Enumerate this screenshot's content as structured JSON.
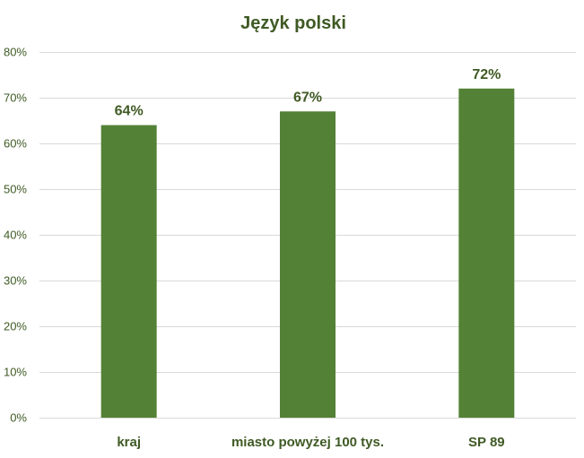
{
  "chart_data": {
    "type": "bar",
    "title": "Język polski",
    "categories": [
      "kraj",
      "miasto powyżej 100 tys.",
      "SP 89"
    ],
    "values": [
      64,
      67,
      72
    ],
    "data_labels": [
      "64%",
      "67%",
      "72%"
    ],
    "y_ticks": [
      0,
      10,
      20,
      30,
      40,
      50,
      60,
      70,
      80
    ],
    "y_tick_labels": [
      "0%",
      "10%",
      "20%",
      "30%",
      "40%",
      "50%",
      "60%",
      "70%",
      "80%"
    ],
    "ylim": [
      0,
      80
    ],
    "grid": true,
    "legend": "none",
    "colors": {
      "bar": "#538135",
      "text": "#3f5a24",
      "grid": "#d9d9d9"
    }
  }
}
